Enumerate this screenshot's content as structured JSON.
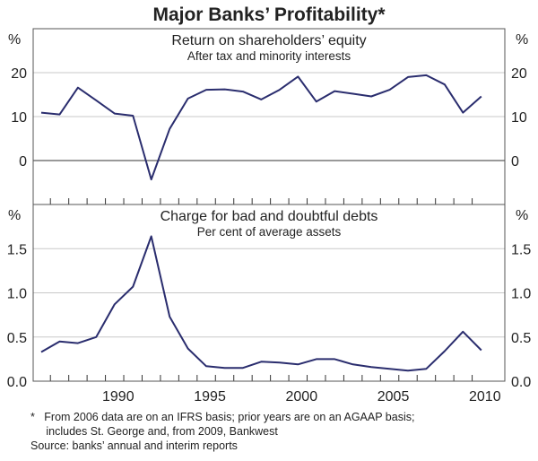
{
  "title": "Major Banks’ Profitability*",
  "footnotes": [
    "*   From 2006 data are on an IFRS basis; prior years are on an AGAAP basis;",
    "     includes St. George and, from 2009, Bankwest",
    "Source: banks’ annual and interim reports"
  ],
  "line_color": "#2a2d6e",
  "chart_data": [
    {
      "type": "line",
      "title": "Return on shareholders’ equity",
      "subtitle": "After tax and minority interests",
      "ylabel": "%",
      "ylim": [
        -10,
        30
      ],
      "yticks": [
        0,
        10,
        20
      ],
      "ytick_labels": [
        "0",
        "10",
        "20"
      ],
      "grid": true,
      "x": [
        1986,
        1987,
        1988,
        1989,
        1990,
        1991,
        1992,
        1993,
        1994,
        1995,
        1996,
        1997,
        1998,
        1999,
        2000,
        2001,
        2002,
        2003,
        2004,
        2005,
        2006,
        2007,
        2008,
        2009,
        2010
      ],
      "values": [
        10.9,
        10.5,
        16.6,
        13.7,
        10.7,
        10.2,
        -4.3,
        7.2,
        14.1,
        16.1,
        16.2,
        15.7,
        13.9,
        16.1,
        19.1,
        13.4,
        15.8,
        15.2,
        14.6,
        16.1,
        19.0,
        19.4,
        17.3,
        10.9,
        14.6
      ]
    },
    {
      "type": "line",
      "title": "Charge for bad and doubtful debts",
      "subtitle": "Per cent of average assets",
      "ylabel": "%",
      "ylim": [
        0,
        2
      ],
      "yticks": [
        0,
        0.5,
        1.0,
        1.5
      ],
      "ytick_labels": [
        "0.0",
        "0.5",
        "1.0",
        "1.5"
      ],
      "grid": true,
      "xticks": [
        1990,
        1995,
        2000,
        2005,
        2010
      ],
      "xtick_labels": [
        "1990",
        "1995",
        "2000",
        "2005",
        "2010"
      ],
      "x": [
        1986,
        1987,
        1988,
        1989,
        1990,
        1991,
        1992,
        1993,
        1994,
        1995,
        1996,
        1997,
        1998,
        1999,
        2000,
        2001,
        2002,
        2003,
        2004,
        2005,
        2006,
        2007,
        2008,
        2009,
        2010
      ],
      "values": [
        0.33,
        0.45,
        0.43,
        0.5,
        0.87,
        1.07,
        1.64,
        0.73,
        0.37,
        0.17,
        0.15,
        0.15,
        0.22,
        0.21,
        0.19,
        0.25,
        0.25,
        0.19,
        0.16,
        0.14,
        0.12,
        0.14,
        0.34,
        0.56,
        0.35
      ]
    }
  ]
}
